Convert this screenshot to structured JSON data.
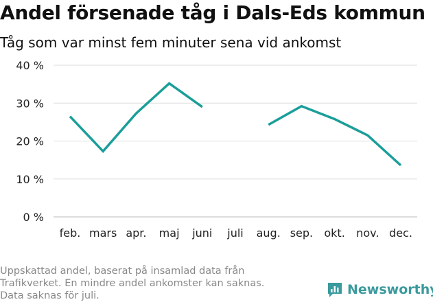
{
  "title": "Andel försenade tåg i Dals-Eds kommun",
  "subtitle": "Tåg som var minst fem minuter sena vid ankomst",
  "note_lines": [
    "Uppskattad andel, baserat på insamlad data från",
    "Trafikverket. En mindre andel ankomster kan saknas.",
    "Data saknas för juli."
  ],
  "brand": {
    "name": "Newsworthy",
    "icon": "newsworthy-logo-icon",
    "color": "#3a9a9d"
  },
  "chart_data": {
    "type": "line",
    "title": "Andel försenade tåg i Dals-Eds kommun",
    "subtitle": "Tåg som var minst fem minuter sena vid ankomst",
    "categories": [
      "feb.",
      "mars",
      "apr.",
      "maj",
      "juni",
      "juli",
      "aug.",
      "sep.",
      "okt.",
      "nov.",
      "dec."
    ],
    "series": [
      {
        "values": [
          26.5,
          17.3,
          27.3,
          35.2,
          29.0,
          null,
          24.3,
          29.2,
          25.8,
          21.5,
          13.6
        ],
        "color": "#1a9e9a"
      }
    ],
    "yticks": [
      0,
      10,
      20,
      30,
      40
    ],
    "ytick_labels": [
      "0 %",
      "10 %",
      "20 %",
      "30 %",
      "40 %"
    ],
    "ylim": [
      0,
      40
    ],
    "grid": true,
    "xlabel": "",
    "ylabel": ""
  }
}
